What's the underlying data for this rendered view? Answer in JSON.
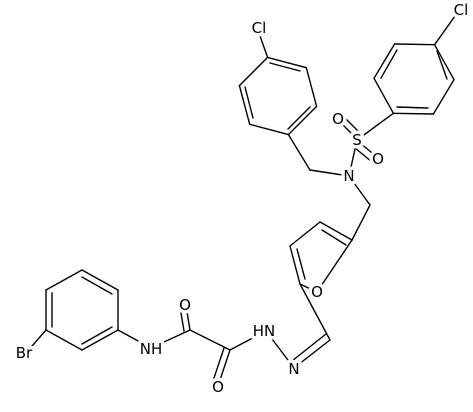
{
  "atoms": [
    "Cl",
    "Cl",
    "S",
    "O",
    "O",
    "N",
    "O",
    "O",
    "O",
    "HN",
    "N",
    "NH",
    "Br"
  ]
}
